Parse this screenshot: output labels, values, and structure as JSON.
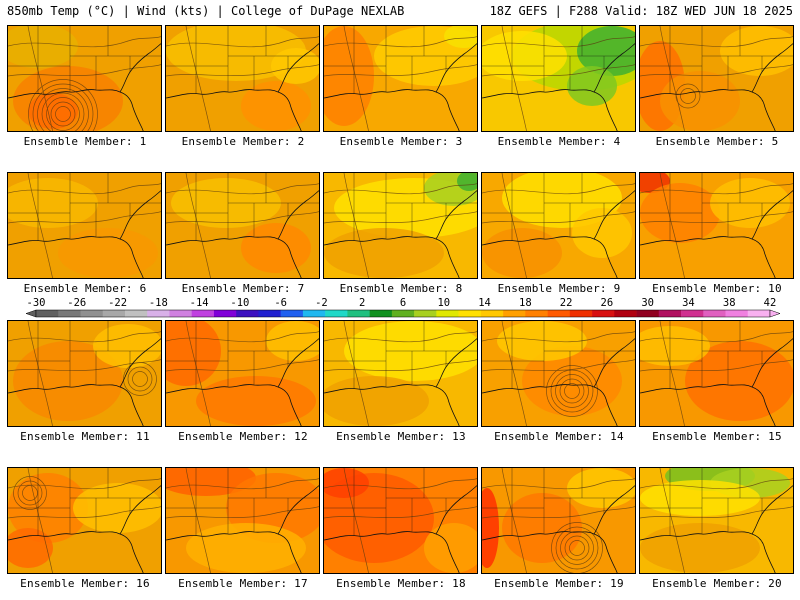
{
  "header": {
    "title": "850mb Temp (°C) | Wind (kts) | College of DuPage NEXLAB",
    "run_info": "18Z GEFS | F288 Valid: 18Z WED JUN 18 2025"
  },
  "members": [
    {
      "label": "Ensemble Member: 1",
      "base": "#f0a000",
      "blobs": [
        [
          "#f88000",
          60,
          75,
          55,
          35
        ],
        [
          "#e8b000",
          30,
          20,
          40,
          22
        ],
        [
          "#ff6a00",
          45,
          85,
          25,
          18
        ]
      ],
      "vortex": [
        55,
        88,
        7
      ]
    },
    {
      "label": "Ensemble Member: 2",
      "base": "#f0a000",
      "blobs": [
        [
          "#f8c000",
          70,
          25,
          70,
          30
        ],
        [
          "#ff9000",
          110,
          80,
          35,
          25
        ],
        [
          "#ffc800",
          130,
          40,
          25,
          18
        ]
      ],
      "vortex": null
    },
    {
      "label": "Ensemble Member: 3",
      "base": "#f8a800",
      "blobs": [
        [
          "#ff8000",
          20,
          50,
          30,
          50
        ],
        [
          "#ffcc00",
          110,
          30,
          60,
          30
        ],
        [
          "#f8e000",
          140,
          10,
          20,
          12
        ]
      ],
      "vortex": null
    },
    {
      "label": "Ensemble Member: 4",
      "base": "#f8c800",
      "blobs": [
        [
          "#b8d800",
          100,
          30,
          70,
          35
        ],
        [
          "#40b030",
          130,
          25,
          35,
          25
        ],
        [
          "#80c820",
          110,
          60,
          25,
          20
        ],
        [
          "#ffe000",
          40,
          30,
          45,
          25
        ]
      ],
      "vortex": null
    },
    {
      "label": "Ensemble Member: 5",
      "base": "#f0a000",
      "blobs": [
        [
          "#ff7000",
          20,
          60,
          25,
          45
        ],
        [
          "#f89000",
          60,
          75,
          40,
          30
        ],
        [
          "#ffc000",
          120,
          25,
          40,
          25
        ]
      ],
      "vortex": [
        48,
        70,
        2
      ]
    },
    {
      "label": "Ensemble Member: 6",
      "base": "#f0a000",
      "blobs": [
        [
          "#f8b800",
          40,
          30,
          50,
          25
        ],
        [
          "#f89800",
          100,
          80,
          50,
          25
        ]
      ],
      "vortex": null
    },
    {
      "label": "Ensemble Member: 7",
      "base": "#f0a000",
      "blobs": [
        [
          "#f8c000",
          60,
          30,
          55,
          25
        ],
        [
          "#ff8800",
          110,
          75,
          35,
          25
        ]
      ],
      "vortex": null
    },
    {
      "label": "Ensemble Member: 8",
      "base": "#f8b800",
      "blobs": [
        [
          "#ffe000",
          90,
          35,
          80,
          30
        ],
        [
          "#a8d020",
          130,
          15,
          30,
          18
        ],
        [
          "#40b030",
          145,
          8,
          12,
          10
        ],
        [
          "#f0a000",
          60,
          80,
          60,
          25
        ]
      ],
      "vortex": null
    },
    {
      "label": "Ensemble Member: 9",
      "base": "#f8a800",
      "blobs": [
        [
          "#ffe000",
          80,
          25,
          60,
          30
        ],
        [
          "#f89000",
          40,
          80,
          40,
          25
        ],
        [
          "#ffc800",
          120,
          60,
          30,
          25
        ]
      ],
      "vortex": null
    },
    {
      "label": "Ensemble Member: 10",
      "base": "#f8a000",
      "blobs": [
        [
          "#f03000",
          10,
          8,
          20,
          12
        ],
        [
          "#ff8000",
          40,
          40,
          40,
          30
        ],
        [
          "#ffc000",
          110,
          30,
          40,
          25
        ]
      ],
      "vortex": null
    },
    {
      "label": "Ensemble Member: 11",
      "base": "#f0a000",
      "blobs": [
        [
          "#f88800",
          60,
          60,
          55,
          40
        ],
        [
          "#ffc000",
          120,
          25,
          35,
          22
        ]
      ],
      "vortex": [
        132,
        58,
        3
      ]
    },
    {
      "label": "Ensemble Member: 12",
      "base": "#f89800",
      "blobs": [
        [
          "#ff6800",
          20,
          30,
          35,
          35
        ],
        [
          "#ff7800",
          90,
          80,
          60,
          25
        ],
        [
          "#ffc000",
          130,
          20,
          30,
          20
        ]
      ],
      "vortex": null
    },
    {
      "label": "Ensemble Member: 13",
      "base": "#f8b800",
      "blobs": [
        [
          "#ffe000",
          90,
          30,
          70,
          30
        ],
        [
          "#f0a000",
          50,
          80,
          55,
          25
        ]
      ],
      "vortex": null
    },
    {
      "label": "Ensemble Member: 14",
      "base": "#f8a000",
      "blobs": [
        [
          "#ff8800",
          90,
          60,
          50,
          35
        ],
        [
          "#ffc800",
          60,
          20,
          45,
          20
        ]
      ],
      "vortex": [
        90,
        70,
        5
      ]
    },
    {
      "label": "Ensemble Member: 15",
      "base": "#f89800",
      "blobs": [
        [
          "#ff7000",
          100,
          60,
          55,
          40
        ],
        [
          "#ffc000",
          30,
          25,
          40,
          20
        ]
      ],
      "vortex": null
    },
    {
      "label": "Ensemble Member: 16",
      "base": "#f0a000",
      "blobs": [
        [
          "#ff8000",
          40,
          40,
          40,
          35
        ],
        [
          "#ffc000",
          110,
          40,
          45,
          25
        ],
        [
          "#ff6a00",
          20,
          80,
          25,
          20
        ]
      ],
      "vortex": [
        22,
        25,
        3
      ]
    },
    {
      "label": "Ensemble Member: 17",
      "base": "#f89800",
      "blobs": [
        [
          "#ff6000",
          40,
          10,
          50,
          18
        ],
        [
          "#ff7800",
          110,
          40,
          50,
          35
        ],
        [
          "#ffb000",
          80,
          80,
          60,
          25
        ]
      ],
      "vortex": null
    },
    {
      "label": "Ensemble Member: 18",
      "base": "#ff8000",
      "blobs": [
        [
          "#ff5a00",
          50,
          50,
          60,
          45
        ],
        [
          "#ff4000",
          20,
          15,
          25,
          15
        ],
        [
          "#ffa000",
          130,
          80,
          30,
          25
        ]
      ],
      "vortex": null
    },
    {
      "label": "Ensemble Member: 19",
      "base": "#f89800",
      "blobs": [
        [
          "#ff3000",
          5,
          60,
          12,
          40
        ],
        [
          "#ff7800",
          60,
          60,
          40,
          35
        ],
        [
          "#ffc800",
          120,
          20,
          35,
          20
        ]
      ],
      "vortex": [
        95,
        80,
        5
      ]
    },
    {
      "label": "Ensemble Member: 20",
      "base": "#f8b800",
      "blobs": [
        [
          "#78c020",
          70,
          8,
          45,
          15
        ],
        [
          "#a8d020",
          110,
          15,
          40,
          15
        ],
        [
          "#ffe000",
          60,
          30,
          60,
          18
        ],
        [
          "#f0a000",
          60,
          80,
          60,
          25
        ]
      ],
      "vortex": null
    }
  ],
  "colorbar": {
    "labels": [
      "-30",
      "-26",
      "-22",
      "-18",
      "-14",
      "-10",
      "-6",
      "-2",
      "2",
      "6",
      "10",
      "14",
      "18",
      "22",
      "26",
      "30",
      "34",
      "38",
      "42"
    ],
    "colors": [
      "#606060",
      "#787878",
      "#909090",
      "#a8a8a8",
      "#c0c0c0",
      "#d8b0e8",
      "#d080e0",
      "#c040e0",
      "#8000d8",
      "#3c10c0",
      "#2020d0",
      "#2060f0",
      "#20b8f0",
      "#20d8c8",
      "#20c080",
      "#109020",
      "#60b020",
      "#a8d020",
      "#e0e800",
      "#ffe000",
      "#ffc800",
      "#ffa000",
      "#ff8000",
      "#ff5a00",
      "#f03000",
      "#d81010",
      "#b00010",
      "#900020",
      "#b01060",
      "#d03090",
      "#e060c0",
      "#f080e0",
      "#f8b0f0"
    ]
  }
}
